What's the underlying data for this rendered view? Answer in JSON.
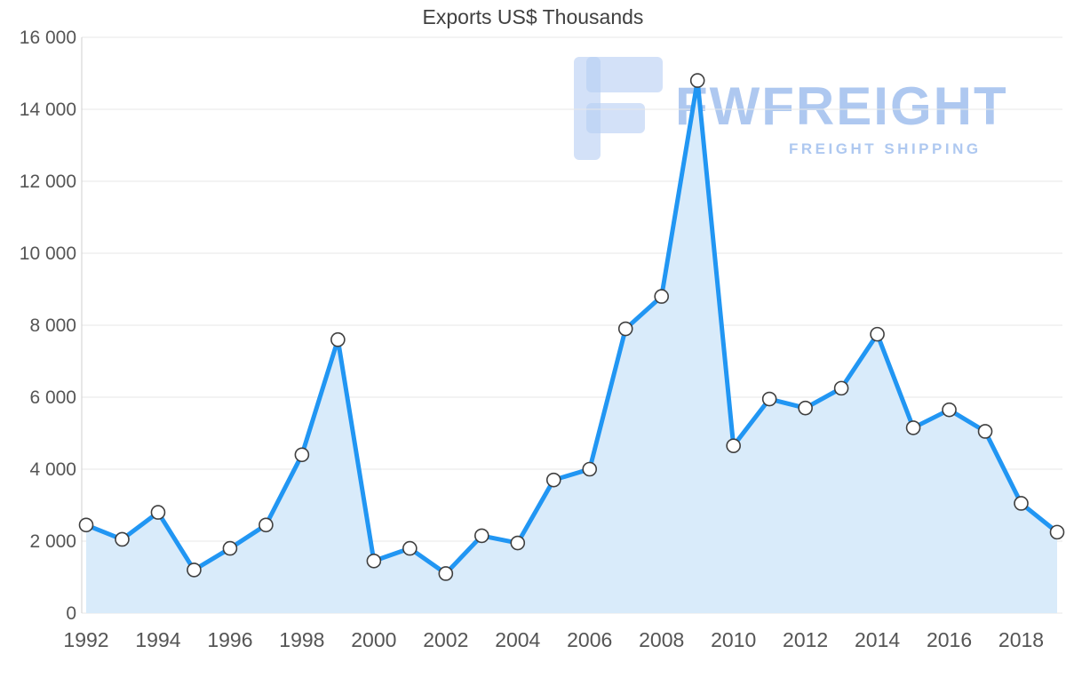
{
  "chart_data": {
    "type": "area",
    "title": "Exports US$ Thousands",
    "xlabel": "",
    "ylabel": "",
    "x": [
      1992,
      1993,
      1994,
      1995,
      1996,
      1997,
      1998,
      1999,
      2000,
      2001,
      2002,
      2003,
      2004,
      2005,
      2006,
      2007,
      2008,
      2009,
      2010,
      2011,
      2012,
      2013,
      2014,
      2015,
      2016,
      2017,
      2018,
      2019
    ],
    "values": [
      2450,
      2050,
      2800,
      1200,
      1800,
      2450,
      4400,
      7600,
      1450,
      1800,
      1100,
      2150,
      1950,
      3700,
      4000,
      7900,
      8800,
      14800,
      4650,
      5950,
      5700,
      6250,
      7750,
      5150,
      5650,
      5050,
      3050,
      2250
    ],
    "ylim": [
      0,
      16000
    ],
    "y_ticks": [
      0,
      2000,
      4000,
      6000,
      8000,
      10000,
      12000,
      14000,
      16000
    ],
    "y_tick_labels": [
      "0",
      "2 000",
      "4 000",
      "6 000",
      "8 000",
      "10 000",
      "12 000",
      "14 000",
      "16 000"
    ],
    "x_tick_labels": [
      "1992",
      "1994",
      "1996",
      "1998",
      "2000",
      "2002",
      "2004",
      "2006",
      "2008",
      "2010",
      "2012",
      "2014",
      "2016",
      "2018"
    ],
    "grid": true,
    "legend_position": "none",
    "colors": {
      "line": "#2196f3",
      "area": "#d9ebfa",
      "marker_fill": "#ffffff",
      "marker_stroke": "#3f3f3f",
      "grid": "#e7e7e7",
      "axis_line": "#cfcfcf",
      "axis_text": "#555555",
      "title_text": "#404040"
    }
  },
  "watermark": {
    "brand": "FWFREIGHT",
    "tagline": "FREIGHT SHIPPING",
    "color": "#a6c3ef"
  }
}
